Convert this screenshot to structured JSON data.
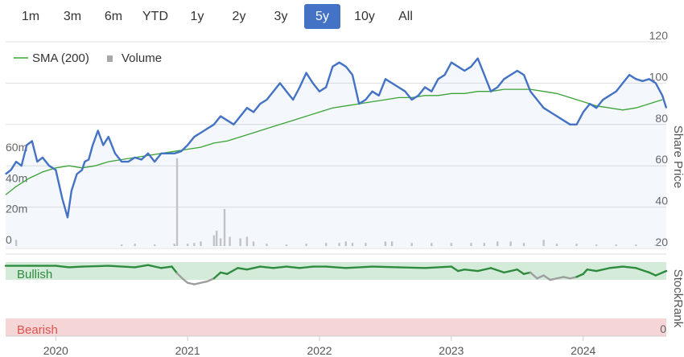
{
  "range_selector": {
    "buttons": [
      "1m",
      "3m",
      "6m",
      "YTD",
      "1y",
      "2y",
      "3y",
      "5y",
      "10y",
      "All"
    ],
    "active": "5y"
  },
  "legend": {
    "sma_label": "SMA (200)",
    "volume_label": "Volume"
  },
  "colors": {
    "price": "#4472c4",
    "sma": "#3aa335",
    "volume": "#c8c8c8",
    "stockrank_bull": "#2e8b3e",
    "stockrank_neutral": "#9e9e9e",
    "bullish_band": "#d4ebd9",
    "bearish_band": "#f5d5d5",
    "accent": "#4472c4"
  },
  "chart_data": [
    {
      "type": "line",
      "title": "",
      "ylabel": "Share Price",
      "y_ticks": [
        "120",
        "100",
        "80",
        "60",
        "40",
        "20"
      ],
      "y_ticks_values": [
        120,
        100,
        80,
        60,
        40,
        20
      ],
      "ylim": [
        20,
        123
      ],
      "x_ticks": [
        "2020",
        "2021",
        "2022",
        "2023",
        "2024"
      ],
      "x_ticks_values": [
        2020.0,
        2021.0,
        2022.0,
        2023.0,
        2024.0
      ],
      "xlim": [
        2019.62,
        2024.63
      ],
      "grid": true,
      "series": [
        {
          "name": "",
          "kind": "price",
          "x": [
            2019.62,
            2019.66,
            2019.7,
            2019.74,
            2019.78,
            2019.82,
            2019.86,
            2019.9,
            2019.95,
            2020.0,
            2020.05,
            2020.09,
            2020.12,
            2020.16,
            2020.2,
            2020.22,
            2020.25,
            2020.28,
            2020.32,
            2020.36,
            2020.4,
            2020.45,
            2020.5,
            2020.55,
            2020.6,
            2020.65,
            2020.7,
            2020.75,
            2020.8,
            2020.85,
            2020.9,
            2020.95,
            2021.0,
            2021.05,
            2021.1,
            2021.15,
            2021.2,
            2021.25,
            2021.3,
            2021.35,
            2021.4,
            2021.45,
            2021.5,
            2021.55,
            2021.6,
            2021.65,
            2021.7,
            2021.75,
            2021.8,
            2021.85,
            2021.9,
            2021.95,
            2022.0,
            2022.05,
            2022.1,
            2022.15,
            2022.2,
            2022.25,
            2022.3,
            2022.35,
            2022.4,
            2022.45,
            2022.5,
            2022.55,
            2022.6,
            2022.65,
            2022.7,
            2022.75,
            2022.8,
            2022.85,
            2022.9,
            2022.95,
            2023.0,
            2023.05,
            2023.1,
            2023.15,
            2023.2,
            2023.25,
            2023.3,
            2023.35,
            2023.4,
            2023.45,
            2023.5,
            2023.55,
            2023.6,
            2023.65,
            2023.7,
            2023.75,
            2023.8,
            2023.85,
            2023.9,
            2023.95,
            2024.0,
            2024.05,
            2024.1,
            2024.15,
            2024.2,
            2024.25,
            2024.3,
            2024.35,
            2024.4,
            2024.45,
            2024.5,
            2024.55,
            2024.6,
            2024.63
          ],
          "values": [
            56,
            58,
            62,
            60,
            70,
            72,
            62,
            64,
            60,
            58,
            44,
            35,
            48,
            56,
            58,
            62,
            63,
            70,
            77,
            70,
            74,
            66,
            62,
            62,
            64,
            63,
            66,
            62,
            66,
            66,
            66,
            67,
            70,
            74,
            76,
            78,
            80,
            84,
            82,
            80,
            84,
            88,
            86,
            90,
            92,
            96,
            100,
            96,
            92,
            98,
            105,
            100,
            96,
            98,
            108,
            110,
            108,
            104,
            90,
            92,
            96,
            94,
            102,
            100,
            98,
            96,
            92,
            94,
            98,
            96,
            102,
            104,
            110,
            108,
            106,
            108,
            112,
            104,
            96,
            98,
            102,
            104,
            106,
            104,
            96,
            92,
            88,
            86,
            84,
            82,
            80,
            80,
            86,
            90,
            88,
            92,
            94,
            96,
            100,
            104,
            102,
            101,
            102,
            100,
            94,
            88
          ]
        },
        {
          "name": "SMA (200)",
          "kind": "sma",
          "x": [
            2019.62,
            2019.7,
            2019.8,
            2019.9,
            2020.0,
            2020.1,
            2020.2,
            2020.3,
            2020.4,
            2020.5,
            2020.6,
            2020.7,
            2020.8,
            2020.9,
            2021.0,
            2021.1,
            2021.2,
            2021.3,
            2021.4,
            2021.5,
            2021.6,
            2021.7,
            2021.8,
            2021.9,
            2022.0,
            2022.1,
            2022.2,
            2022.3,
            2022.4,
            2022.5,
            2022.6,
            2022.7,
            2022.8,
            2022.9,
            2023.0,
            2023.1,
            2023.2,
            2023.3,
            2023.4,
            2023.5,
            2023.6,
            2023.7,
            2023.8,
            2023.9,
            2024.0,
            2024.1,
            2024.2,
            2024.3,
            2024.4,
            2024.5,
            2024.6
          ],
          "values": [
            46,
            50,
            54,
            57,
            59,
            60,
            59,
            60,
            62,
            63,
            64,
            65,
            66,
            67,
            68,
            69,
            71,
            72,
            74,
            76,
            78,
            80,
            82,
            84,
            86,
            88,
            89,
            90,
            91,
            92,
            93,
            93,
            94,
            94,
            95,
            95,
            96,
            96,
            97,
            97,
            97,
            96,
            95,
            93,
            91,
            89,
            88,
            87,
            88,
            90,
            92
          ]
        }
      ]
    },
    {
      "type": "bar",
      "title": "",
      "ylabel": "",
      "y_ticks": [
        "60m",
        "40m",
        "20m",
        "0"
      ],
      "y_ticks_values": [
        60,
        40,
        20,
        0
      ],
      "ylim": [
        0,
        80
      ],
      "unit": "m",
      "series": [
        {
          "name": "Volume",
          "x": [
            2019.7,
            2020.5,
            2020.6,
            2020.75,
            2020.9,
            2020.92,
            2021.0,
            2021.05,
            2021.1,
            2021.2,
            2021.22,
            2021.25,
            2021.28,
            2021.32,
            2021.4,
            2021.45,
            2021.5,
            2021.6,
            2021.75,
            2021.9,
            2022.05,
            2022.15,
            2022.2,
            2022.25,
            2022.35,
            2022.5,
            2022.55,
            2022.7,
            2022.85,
            2023.0,
            2023.15,
            2023.25,
            2023.35,
            2023.45,
            2023.55,
            2023.7,
            2023.8,
            2023.95,
            2024.1,
            2024.25,
            2024.4,
            2024.55
          ],
          "values": [
            4,
            1,
            1.5,
            1,
            1.5,
            57,
            1.5,
            2,
            3,
            7,
            10,
            5,
            24,
            6,
            5,
            6,
            3,
            1.5,
            1,
            1.5,
            2,
            2,
            3,
            2,
            2,
            3,
            3,
            2,
            2,
            2,
            2,
            2,
            3,
            3,
            2,
            4,
            1.5,
            1.5,
            1,
            1,
            1,
            1
          ]
        }
      ]
    },
    {
      "type": "line",
      "title": "",
      "ylabel": "StockRank",
      "y_ticks": [
        "0"
      ],
      "y_ticks_values": [
        0
      ],
      "ylim": [
        0,
        100
      ],
      "bands": [
        "Bullish",
        "Bearish"
      ],
      "series": [
        {
          "name": "",
          "x": [
            2019.62,
            2019.8,
            2020.0,
            2020.1,
            2020.2,
            2020.4,
            2020.6,
            2020.7,
            2020.8,
            2020.88,
            2020.92,
            2020.96,
            2021.0,
            2021.05,
            2021.1,
            2021.15,
            2021.2,
            2021.25,
            2021.3,
            2021.38,
            2021.45,
            2021.55,
            2021.65,
            2021.75,
            2021.85,
            2021.95,
            2022.05,
            2022.2,
            2022.4,
            2022.6,
            2022.8,
            2023.0,
            2023.05,
            2023.1,
            2023.2,
            2023.3,
            2023.4,
            2023.5,
            2023.55,
            2023.6,
            2023.65,
            2023.7,
            2023.75,
            2023.8,
            2023.85,
            2023.9,
            2023.95,
            2024.0,
            2024.03,
            2024.1,
            2024.2,
            2024.3,
            2024.4,
            2024.5,
            2024.55,
            2024.63
          ],
          "values": [
            95,
            95,
            95,
            93,
            94,
            95,
            93,
            96,
            92,
            94,
            85,
            78,
            72,
            70,
            72,
            74,
            78,
            86,
            84,
            92,
            90,
            94,
            92,
            94,
            92,
            94,
            94,
            92,
            94,
            93,
            92,
            94,
            88,
            90,
            88,
            92,
            86,
            90,
            84,
            86,
            78,
            82,
            76,
            78,
            80,
            78,
            80,
            84,
            90,
            88,
            92,
            94,
            92,
            86,
            82,
            88
          ],
          "segments": [
            "bull",
            "bull",
            "bull",
            "bull",
            "bull",
            "bull",
            "bull",
            "bull",
            "bull",
            "bull",
            "bull",
            "neutral",
            "neutral",
            "neutral",
            "neutral",
            "neutral",
            "neutral",
            "bull",
            "bull",
            "bull",
            "bull",
            "bull",
            "bull",
            "bull",
            "bull",
            "bull",
            "bull",
            "bull",
            "bull",
            "bull",
            "bull",
            "bull",
            "bull",
            "bull",
            "bull",
            "bull",
            "bull",
            "bull",
            "bull",
            "bull",
            "neutral",
            "neutral",
            "neutral",
            "neutral",
            "neutral",
            "neutral",
            "neutral",
            "bull",
            "bull",
            "bull",
            "bull",
            "bull",
            "bull",
            "bull",
            "bull",
            "bull"
          ]
        }
      ]
    }
  ]
}
